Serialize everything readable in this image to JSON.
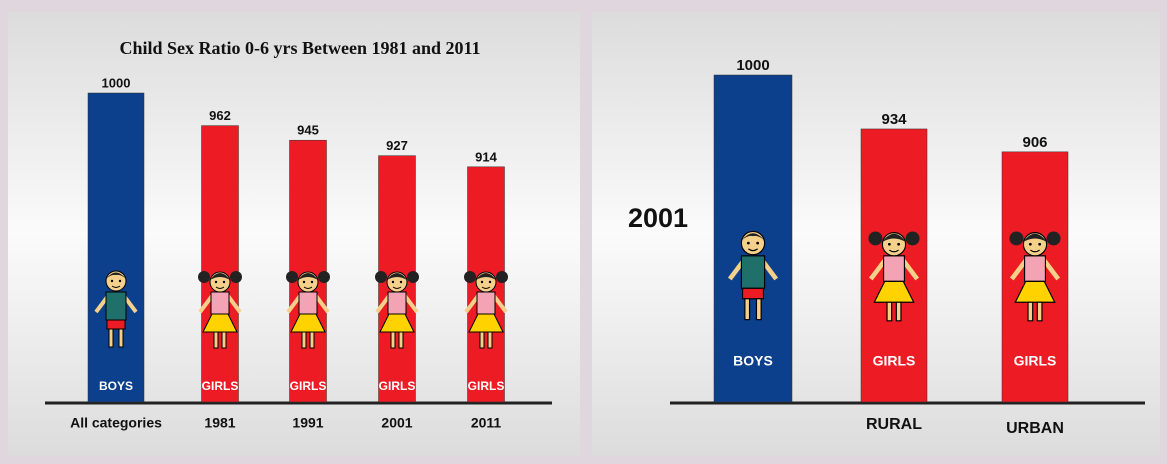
{
  "chart_data": [
    {
      "type": "bar",
      "title": "Child Sex Ratio 0-6 yrs Between 1981 and 2011",
      "categories": [
        "All categories",
        "1981",
        "1991",
        "2001",
        "2011"
      ],
      "values": [
        1000,
        962,
        945,
        927,
        914
      ],
      "bar_labels": [
        "BOYS",
        "GIRLS",
        "GIRLS",
        "GIRLS",
        "GIRLS"
      ],
      "colors": [
        "#0c3f8c",
        "#ed1c24",
        "#ed1c24",
        "#ed1c24",
        "#ed1c24"
      ],
      "ylim": [
        640,
        1000
      ]
    },
    {
      "type": "bar",
      "title": "2001",
      "categories": [
        null,
        "RURAL",
        "URBAN"
      ],
      "values": [
        1000,
        934,
        906
      ],
      "bar_labels": [
        "BOYS",
        "GIRLS",
        "GIRLS"
      ],
      "colors": [
        "#0c3f8c",
        "#ed1c24",
        "#ed1c24"
      ],
      "ylim": [
        600,
        1000
      ]
    }
  ]
}
